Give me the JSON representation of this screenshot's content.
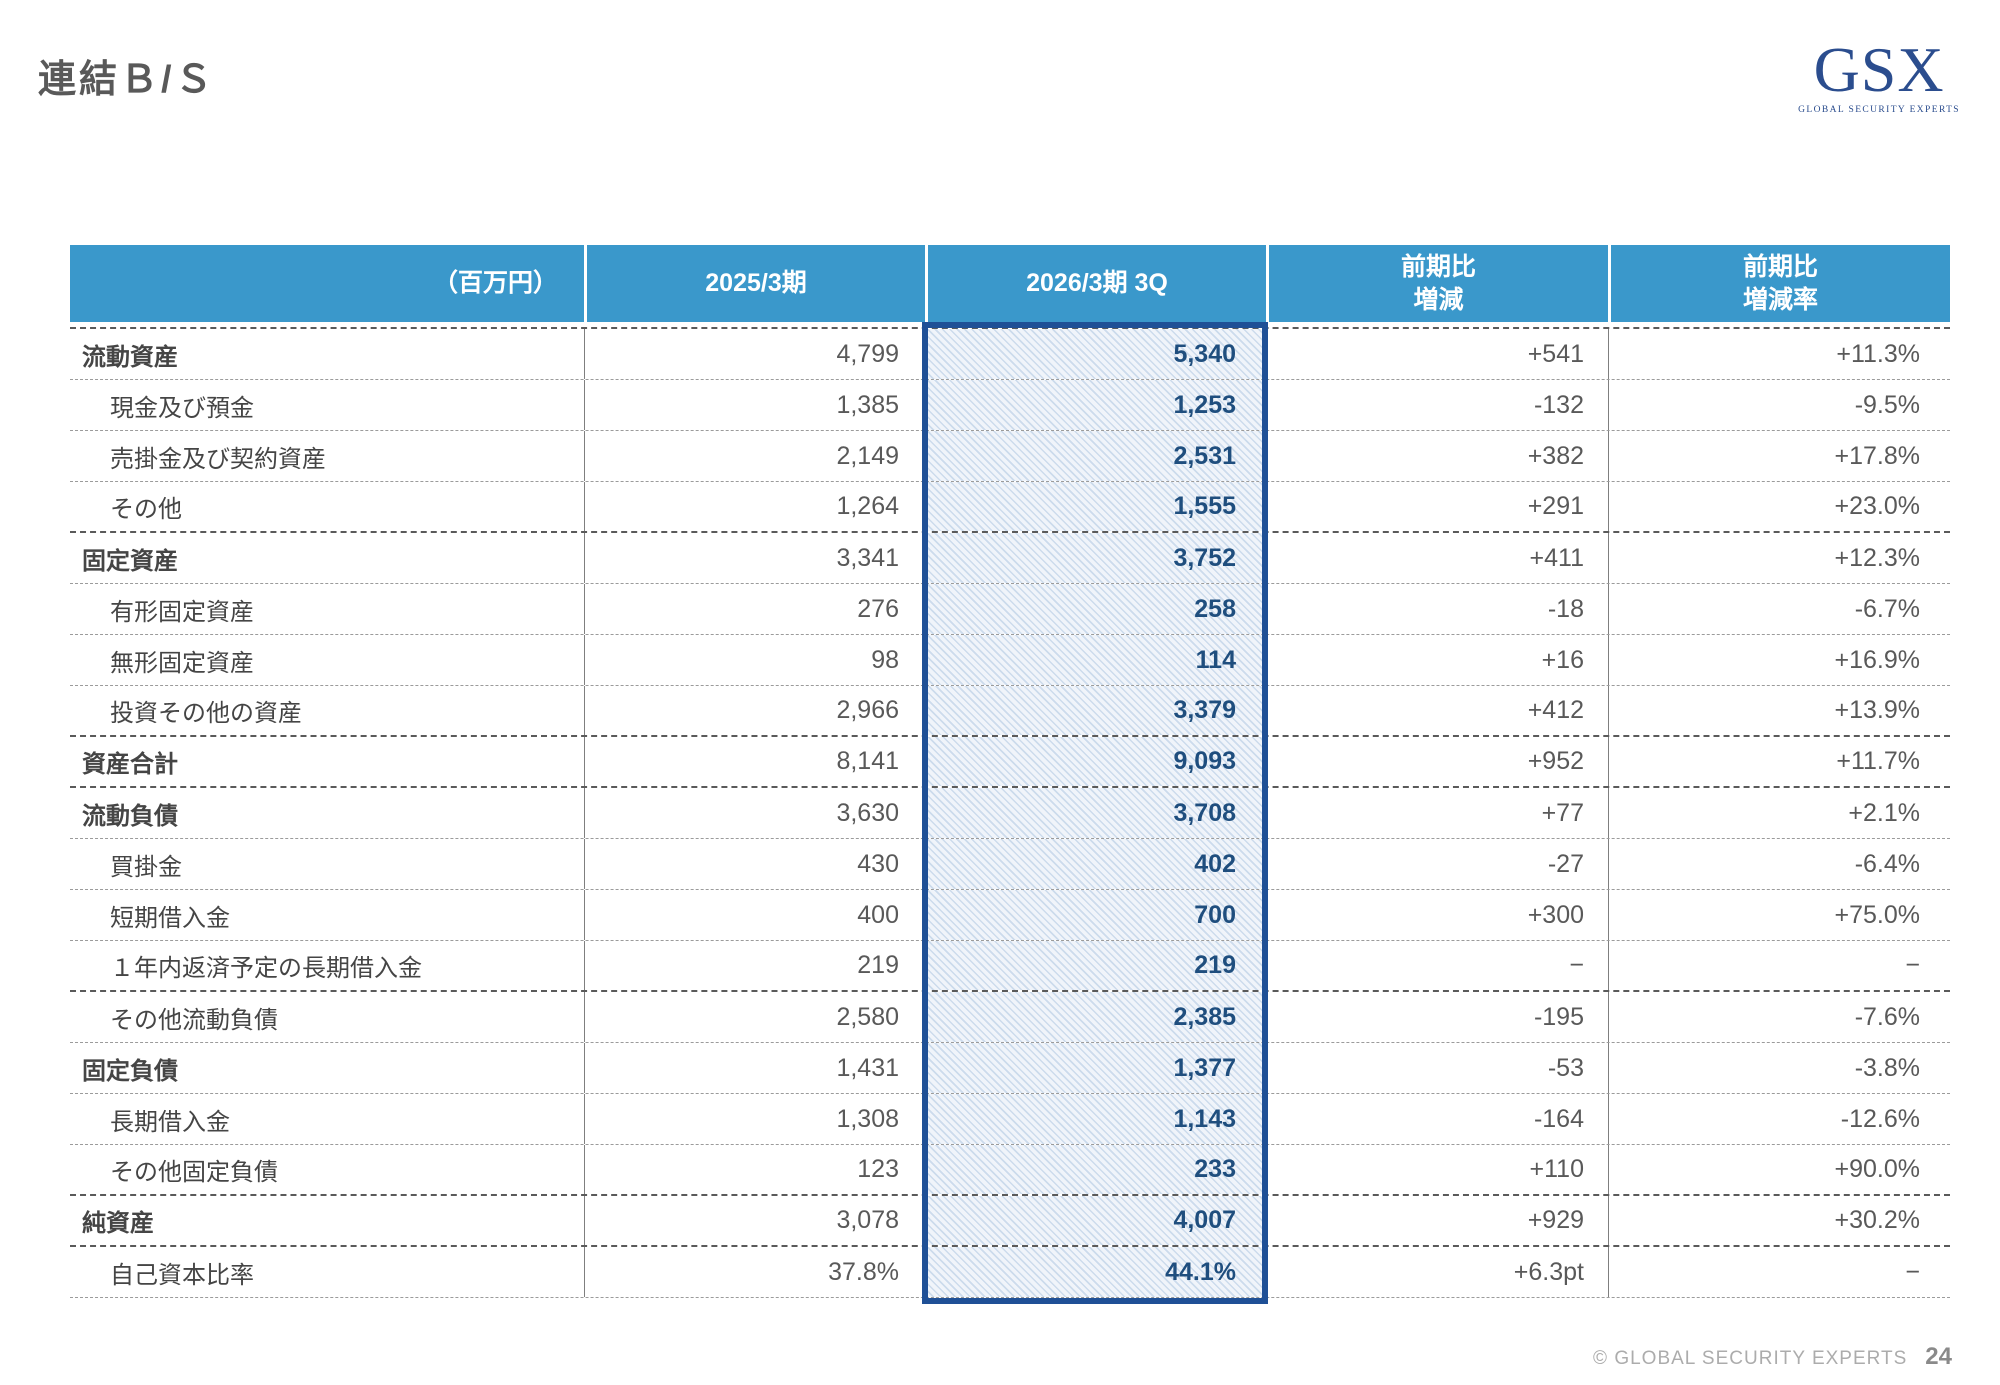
{
  "slide": {
    "title": "連結Ｂ/Ｓ",
    "logo": {
      "name": "GSX",
      "tagline": "GLOBAL SECURITY EXPERTS"
    },
    "footer": {
      "copyright": "© GLOBAL SECURITY EXPERTS",
      "page_number": "24"
    }
  },
  "colors": {
    "header_bg": "#3A98CB",
    "highlight_border": "#1F5096",
    "highlight_text": "#1F4E7E",
    "body_text": "#595959"
  },
  "table": {
    "unit_header": "（百万円）",
    "col_headers": [
      {
        "line1": "2025/3期",
        "line2": ""
      },
      {
        "line1": "2026/3期 3Q",
        "line2": ""
      },
      {
        "line1": "前期比",
        "line2": "増減"
      },
      {
        "line1": "前期比",
        "line2": "増減率"
      }
    ],
    "highlighted_column": "2026/3期 3Q",
    "rows": [
      {
        "label": "流動資産",
        "indent": false,
        "fy2025": "4,799",
        "fy2026_3q": "5,340",
        "yoy_change": "+541",
        "yoy_rate": "+11.3%",
        "divider": "light"
      },
      {
        "label": "現金及び預金",
        "indent": true,
        "fy2025": "1,385",
        "fy2026_3q": "1,253",
        "yoy_change": "-132",
        "yoy_rate": "-9.5%",
        "divider": "light"
      },
      {
        "label": "売掛金及び契約資産",
        "indent": true,
        "fy2025": "2,149",
        "fy2026_3q": "2,531",
        "yoy_change": "+382",
        "yoy_rate": "+17.8%",
        "divider": "light"
      },
      {
        "label": "その他",
        "indent": true,
        "fy2025": "1,264",
        "fy2026_3q": "1,555",
        "yoy_change": "+291",
        "yoy_rate": "+23.0%",
        "divider": "heavy"
      },
      {
        "label": "固定資産",
        "indent": false,
        "fy2025": "3,341",
        "fy2026_3q": "3,752",
        "yoy_change": "+411",
        "yoy_rate": "+12.3%",
        "divider": "light"
      },
      {
        "label": "有形固定資産",
        "indent": true,
        "fy2025": "276",
        "fy2026_3q": "258",
        "yoy_change": "-18",
        "yoy_rate": "-6.7%",
        "divider": "light"
      },
      {
        "label": "無形固定資産",
        "indent": true,
        "fy2025": "98",
        "fy2026_3q": "114",
        "yoy_change": "+16",
        "yoy_rate": "+16.9%",
        "divider": "light"
      },
      {
        "label": "投資その他の資産",
        "indent": true,
        "fy2025": "2,966",
        "fy2026_3q": "3,379",
        "yoy_change": "+412",
        "yoy_rate": "+13.9%",
        "divider": "heavy"
      },
      {
        "label": "資産合計",
        "indent": false,
        "fy2025": "8,141",
        "fy2026_3q": "9,093",
        "yoy_change": "+952",
        "yoy_rate": "+11.7%",
        "divider": "heavy"
      },
      {
        "label": "流動負債",
        "indent": false,
        "fy2025": "3,630",
        "fy2026_3q": "3,708",
        "yoy_change": "+77",
        "yoy_rate": "+2.1%",
        "divider": "light"
      },
      {
        "label": "買掛金",
        "indent": true,
        "fy2025": "430",
        "fy2026_3q": "402",
        "yoy_change": "-27",
        "yoy_rate": "-6.4%",
        "divider": "light"
      },
      {
        "label": "短期借入金",
        "indent": true,
        "fy2025": "400",
        "fy2026_3q": "700",
        "yoy_change": "+300",
        "yoy_rate": "+75.0%",
        "divider": "light"
      },
      {
        "label": "１年内返済予定の長期借入金",
        "indent": true,
        "fy2025": "219",
        "fy2026_3q": "219",
        "yoy_change": "−",
        "yoy_rate": "−",
        "divider": "heavy"
      },
      {
        "label": "その他流動負債",
        "indent": true,
        "fy2025": "2,580",
        "fy2026_3q": "2,385",
        "yoy_change": "-195",
        "yoy_rate": "-7.6%",
        "divider": "light"
      },
      {
        "label": "固定負債",
        "indent": false,
        "fy2025": "1,431",
        "fy2026_3q": "1,377",
        "yoy_change": "-53",
        "yoy_rate": "-3.8%",
        "divider": "light"
      },
      {
        "label": "長期借入金",
        "indent": true,
        "fy2025": "1,308",
        "fy2026_3q": "1,143",
        "yoy_change": "-164",
        "yoy_rate": "-12.6%",
        "divider": "light"
      },
      {
        "label": "その他固定負債",
        "indent": true,
        "fy2025": "123",
        "fy2026_3q": "233",
        "yoy_change": "+110",
        "yoy_rate": "+90.0%",
        "divider": "heavy"
      },
      {
        "label": "純資産",
        "indent": false,
        "fy2025": "3,078",
        "fy2026_3q": "4,007",
        "yoy_change": "+929",
        "yoy_rate": "+30.2%",
        "divider": "heavy"
      },
      {
        "label": "自己資本比率",
        "indent": true,
        "fy2025": "37.8%",
        "fy2026_3q": "44.1%",
        "yoy_change": "+6.3pt",
        "yoy_rate": "−",
        "divider": "light"
      }
    ]
  }
}
